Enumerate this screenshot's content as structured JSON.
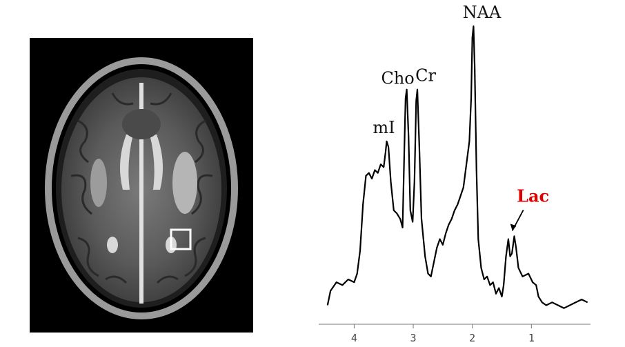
{
  "colors": {
    "lac_label": "#e00000",
    "spectrum_line": "#000000",
    "roi_box": "#ffffff"
  },
  "mri_image": {
    "roi_marker": "white square region of interest"
  },
  "chart_data": {
    "type": "line",
    "title": "",
    "xlabel": "",
    "ylabel": "",
    "x_axis_reversed": true,
    "xlim": [
      4.6,
      0.0
    ],
    "ylim": [
      0,
      1.0
    ],
    "xticks": [
      "4",
      "3",
      "2",
      "1"
    ],
    "xtick_values": [
      4,
      3,
      2,
      1
    ],
    "grid": false,
    "series": [
      {
        "points": [
          [
            4.45,
            0.03
          ],
          [
            4.4,
            0.08
          ],
          [
            4.3,
            0.11
          ],
          [
            4.2,
            0.1
          ],
          [
            4.1,
            0.12
          ],
          [
            4.0,
            0.11
          ],
          [
            3.95,
            0.14
          ],
          [
            3.9,
            0.22
          ],
          [
            3.85,
            0.38
          ],
          [
            3.8,
            0.48
          ],
          [
            3.75,
            0.49
          ],
          [
            3.7,
            0.47
          ],
          [
            3.65,
            0.5
          ],
          [
            3.6,
            0.49
          ],
          [
            3.55,
            0.52
          ],
          [
            3.5,
            0.51
          ],
          [
            3.47,
            0.56
          ],
          [
            3.45,
            0.6
          ],
          [
            3.42,
            0.58
          ],
          [
            3.38,
            0.46
          ],
          [
            3.33,
            0.36
          ],
          [
            3.28,
            0.35
          ],
          [
            3.22,
            0.33
          ],
          [
            3.18,
            0.3
          ],
          [
            3.15,
            0.58
          ],
          [
            3.13,
            0.75
          ],
          [
            3.11,
            0.78
          ],
          [
            3.08,
            0.62
          ],
          [
            3.05,
            0.36
          ],
          [
            3.01,
            0.32
          ],
          [
            2.98,
            0.46
          ],
          [
            2.95,
            0.74
          ],
          [
            2.93,
            0.78
          ],
          [
            2.9,
            0.6
          ],
          [
            2.86,
            0.33
          ],
          [
            2.8,
            0.2
          ],
          [
            2.75,
            0.14
          ],
          [
            2.7,
            0.13
          ],
          [
            2.65,
            0.18
          ],
          [
            2.6,
            0.23
          ],
          [
            2.55,
            0.26
          ],
          [
            2.5,
            0.24
          ],
          [
            2.45,
            0.28
          ],
          [
            2.4,
            0.31
          ],
          [
            2.35,
            0.33
          ],
          [
            2.3,
            0.36
          ],
          [
            2.25,
            0.38
          ],
          [
            2.2,
            0.41
          ],
          [
            2.15,
            0.44
          ],
          [
            2.1,
            0.52
          ],
          [
            2.05,
            0.6
          ],
          [
            2.02,
            0.75
          ],
          [
            2.0,
            0.96
          ],
          [
            1.98,
            1.0
          ],
          [
            1.96,
            0.86
          ],
          [
            1.93,
            0.5
          ],
          [
            1.9,
            0.26
          ],
          [
            1.85,
            0.16
          ],
          [
            1.8,
            0.12
          ],
          [
            1.75,
            0.13
          ],
          [
            1.7,
            0.1
          ],
          [
            1.65,
            0.11
          ],
          [
            1.6,
            0.07
          ],
          [
            1.55,
            0.09
          ],
          [
            1.5,
            0.06
          ],
          [
            1.47,
            0.1
          ],
          [
            1.43,
            0.2
          ],
          [
            1.39,
            0.26
          ],
          [
            1.36,
            0.2
          ],
          [
            1.33,
            0.21
          ],
          [
            1.29,
            0.27
          ],
          [
            1.26,
            0.23
          ],
          [
            1.22,
            0.16
          ],
          [
            1.15,
            0.13
          ],
          [
            1.05,
            0.14
          ],
          [
            0.98,
            0.11
          ],
          [
            0.92,
            0.1
          ],
          [
            0.88,
            0.06
          ],
          [
            0.82,
            0.04
          ],
          [
            0.75,
            0.03
          ],
          [
            0.65,
            0.04
          ],
          [
            0.55,
            0.03
          ],
          [
            0.45,
            0.02
          ],
          [
            0.35,
            0.03
          ],
          [
            0.25,
            0.04
          ],
          [
            0.15,
            0.05
          ],
          [
            0.05,
            0.04
          ]
        ]
      }
    ],
    "annotations": [
      {
        "text": "NAA",
        "x": 1.98,
        "y": 1.0
      },
      {
        "text": "Cho",
        "x": 3.11,
        "y": 0.78
      },
      {
        "text": "Cr",
        "x": 2.93,
        "y": 0.78
      },
      {
        "text": "mI",
        "x": 3.45,
        "y": 0.6
      },
      {
        "text": "Lac",
        "x": 1.3,
        "y": 0.27,
        "arrow": true
      }
    ]
  }
}
